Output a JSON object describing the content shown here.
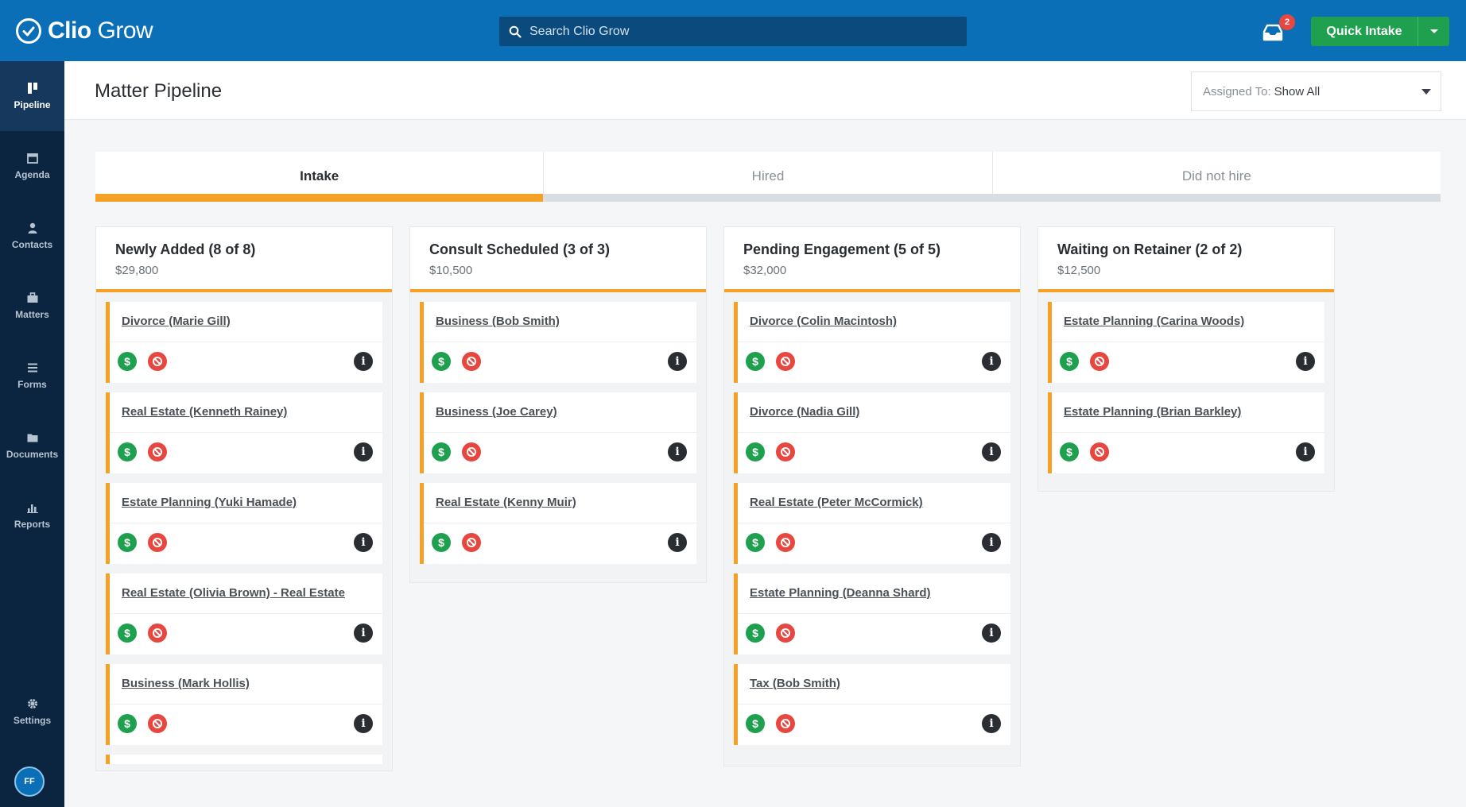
{
  "app": {
    "logo_brand": "Clio",
    "logo_product": "Grow",
    "search_placeholder": "Search Clio Grow",
    "notification_count": "2",
    "quick_intake_label": "Quick Intake"
  },
  "sidebar": {
    "items": [
      {
        "label": "Pipeline",
        "icon": "pipeline-icon",
        "active": true
      },
      {
        "label": "Agenda",
        "icon": "calendar-icon"
      },
      {
        "label": "Contacts",
        "icon": "person-icon"
      },
      {
        "label": "Matters",
        "icon": "briefcase-icon"
      },
      {
        "label": "Forms",
        "icon": "list-icon"
      },
      {
        "label": "Documents",
        "icon": "folder-icon"
      },
      {
        "label": "Reports",
        "icon": "bar-chart-icon"
      }
    ],
    "settings_label": "Settings",
    "avatar_initials": "FF"
  },
  "header": {
    "title": "Matter Pipeline",
    "assigned_prefix": "Assigned To:",
    "assigned_value": "Show All"
  },
  "tabs": [
    {
      "label": "Intake",
      "active": true
    },
    {
      "label": "Hired"
    },
    {
      "label": "Did not hire"
    }
  ],
  "progress_fraction": 0.333,
  "columns": [
    {
      "title": "Newly Added (8 of 8)",
      "amount": "$29,800",
      "cards": [
        "Divorce (Marie Gill)",
        "Real Estate (Kenneth Rainey)",
        "Estate Planning (Yuki Hamade)",
        "Real Estate (Olivia Brown) - Real Estate",
        "Business (Mark Hollis)"
      ]
    },
    {
      "title": "Consult Scheduled (3 of 3)",
      "amount": "$10,500",
      "cards": [
        "Business (Bob Smith)",
        "Business (Joe Carey)",
        "Real Estate (Kenny Muir)"
      ]
    },
    {
      "title": "Pending Engagement (5 of 5)",
      "amount": "$32,000",
      "cards": [
        "Divorce (Colin Macintosh)",
        "Divorce (Nadia Gill)",
        "Real Estate (Peter McCormick)",
        "Estate Planning (Deanna Shard)",
        "Tax (Bob Smith)"
      ]
    },
    {
      "title": "Waiting on Retainer (2 of 2)",
      "amount": "$12,500",
      "cards": [
        "Estate Planning (Carina Woods)",
        "Estate Planning (Brian Barkley)"
      ]
    }
  ],
  "colors": {
    "topbar": "#0a6fb6",
    "sidebar": "#0b2440",
    "accent": "#f5a125",
    "green": "#1fa04f",
    "red": "#e8473f"
  }
}
